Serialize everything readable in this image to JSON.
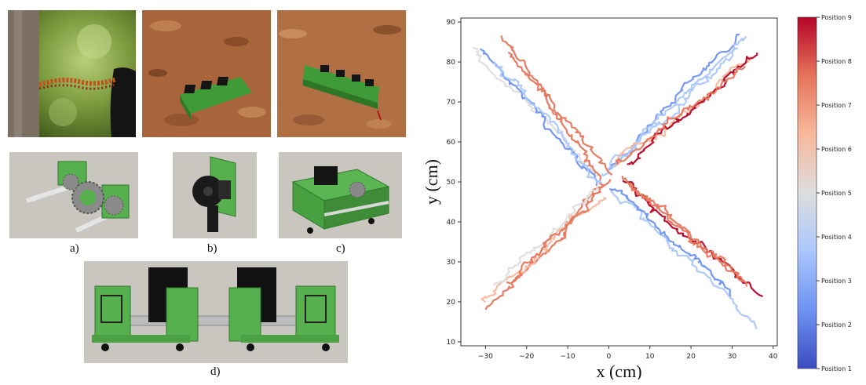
{
  "figure": {
    "sublabels": {
      "a": "a)",
      "b": "b)",
      "c": "c)",
      "d": "d)"
    }
  },
  "colors": {
    "colormap": [
      "#3b4cc0",
      "#6f92f3",
      "#aac7fd",
      "#dddddd",
      "#f7b89c",
      "#e7745b",
      "#b40426"
    ],
    "green_part": "#56b04d",
    "dark_part": "#151515",
    "gray_bg": "#c9c6c0",
    "mars_soil": "#a8643a"
  },
  "chart_data": {
    "type": "line",
    "title": "",
    "xlabel": "x (cm)",
    "ylabel": "y (cm)",
    "xlim": [
      -36,
      41
    ],
    "ylim": [
      9,
      91
    ],
    "xticks": [
      -30,
      -20,
      -10,
      0,
      10,
      20,
      30,
      40
    ],
    "yticks": [
      10,
      20,
      30,
      40,
      50,
      60,
      70,
      80,
      90
    ],
    "grid": false,
    "colorbar": {
      "labels": [
        "Position 1",
        "Position 2",
        "Position 3",
        "Position 4",
        "Position 5",
        "Position 6",
        "Position 7",
        "Position 8",
        "Position 9"
      ],
      "cmap": "coolwarm"
    },
    "trajectories": [
      {
        "start": [
          32,
          87
        ],
        "end": [
          0,
          53
        ],
        "position": 2
      },
      {
        "start": [
          33,
          86
        ],
        "end": [
          -1,
          52
        ],
        "position": 3
      },
      {
        "start": [
          31,
          83
        ],
        "end": [
          1,
          54
        ],
        "position": 4
      },
      {
        "start": [
          34,
          81
        ],
        "end": [
          2,
          55
        ],
        "position": 6
      },
      {
        "start": [
          36,
          82
        ],
        "end": [
          3,
          55
        ],
        "position": 9
      },
      {
        "start": [
          33,
          79
        ],
        "end": [
          2,
          54
        ],
        "position": 8
      },
      {
        "start": [
          -33,
          84
        ],
        "end": [
          -2,
          51
        ],
        "position": 5
      },
      {
        "start": [
          -31,
          83
        ],
        "end": [
          -3,
          50
        ],
        "position": 2
      },
      {
        "start": [
          -26,
          86
        ],
        "end": [
          1,
          52
        ],
        "position": 8
      },
      {
        "start": [
          -24,
          82
        ],
        "end": [
          -1,
          50
        ],
        "position": 7
      },
      {
        "start": [
          -28,
          80
        ],
        "end": [
          0,
          49
        ],
        "position": 4
      },
      {
        "start": [
          37,
          21
        ],
        "end": [
          3,
          50
        ],
        "position": 9
      },
      {
        "start": [
          36,
          14
        ],
        "end": [
          2,
          48
        ],
        "position": 3
      },
      {
        "start": [
          33,
          25
        ],
        "end": [
          4,
          51
        ],
        "position": 7
      },
      {
        "start": [
          30,
          22
        ],
        "end": [
          1,
          49
        ],
        "position": 2
      },
      {
        "start": [
          34,
          24
        ],
        "end": [
          5,
          50
        ],
        "position": 8
      },
      {
        "start": [
          -30,
          19
        ],
        "end": [
          -1,
          48
        ],
        "position": 8
      },
      {
        "start": [
          -31,
          20
        ],
        "end": [
          0,
          47
        ],
        "position": 6
      },
      {
        "start": [
          -28,
          24
        ],
        "end": [
          -2,
          49
        ],
        "position": 5
      },
      {
        "start": [
          -25,
          25
        ],
        "end": [
          1,
          50
        ],
        "position": 7
      }
    ]
  }
}
